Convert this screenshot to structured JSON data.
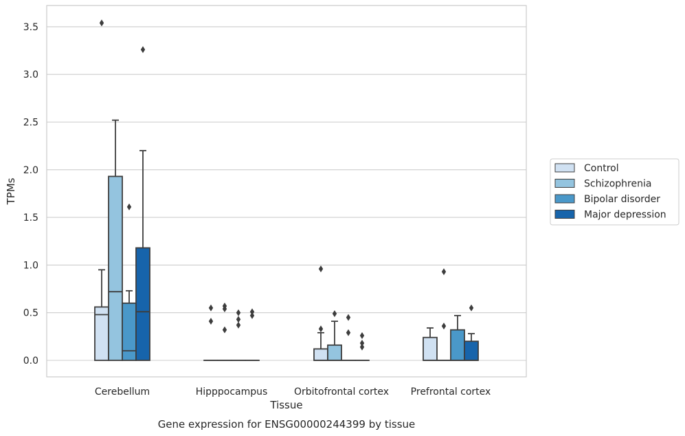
{
  "caption": "Gene expression for ENSG00000244399 by tissue",
  "chart_data": {
    "type": "box",
    "xlabel": "Tissue",
    "ylabel": "TPMs",
    "ylim": [
      -0.17,
      3.72
    ],
    "yticks": [
      0.0,
      0.5,
      1.0,
      1.5,
      2.0,
      2.5,
      3.0,
      3.5
    ],
    "ytick_labels": [
      "0.0",
      "0.5",
      "1.0",
      "1.5",
      "2.0",
      "2.5",
      "3.0",
      "3.5"
    ],
    "grid": "horizontal",
    "legend_position": "right",
    "categories": [
      "Cerebellum",
      "Hipppocampus",
      "Orbitofrontal cortex",
      "Prefrontal cortex"
    ],
    "series": [
      {
        "name": "Control",
        "color": "#d0e1f2",
        "boxes": [
          {
            "whislo": 0.0,
            "q1": 0.0,
            "med": 0.48,
            "q3": 0.56,
            "whishi": 0.95,
            "fliers": [
              3.54
            ]
          },
          {
            "whislo": 0.0,
            "q1": 0.0,
            "med": 0.0,
            "q3": 0.0,
            "whishi": 0.0,
            "fliers": [
              0.41,
              0.55
            ]
          },
          {
            "whislo": 0.0,
            "q1": 0.0,
            "med": 0.0,
            "q3": 0.12,
            "whishi": 0.29,
            "fliers": [
              0.33,
              0.96
            ]
          },
          {
            "whislo": 0.0,
            "q1": 0.0,
            "med": 0.0,
            "q3": 0.24,
            "whishi": 0.34,
            "fliers": []
          }
        ]
      },
      {
        "name": "Schizophrenia",
        "color": "#94c4df",
        "boxes": [
          {
            "whislo": 0.0,
            "q1": 0.0,
            "med": 0.72,
            "q3": 1.93,
            "whishi": 2.52,
            "fliers": []
          },
          {
            "whislo": 0.0,
            "q1": 0.0,
            "med": 0.0,
            "q3": 0.0,
            "whishi": 0.0,
            "fliers": [
              0.32,
              0.54,
              0.57
            ]
          },
          {
            "whislo": 0.0,
            "q1": 0.0,
            "med": 0.0,
            "q3": 0.16,
            "whishi": 0.41,
            "fliers": [
              0.49
            ]
          },
          {
            "whislo": 0.0,
            "q1": 0.0,
            "med": 0.0,
            "q3": 0.0,
            "whishi": 0.0,
            "fliers": [
              0.36,
              0.93
            ]
          }
        ]
      },
      {
        "name": "Bipolar disorder",
        "color": "#4a98c9",
        "boxes": [
          {
            "whislo": 0.0,
            "q1": 0.0,
            "med": 0.1,
            "q3": 0.6,
            "whishi": 0.73,
            "fliers": [
              1.61
            ]
          },
          {
            "whislo": 0.0,
            "q1": 0.0,
            "med": 0.0,
            "q3": 0.0,
            "whishi": 0.0,
            "fliers": [
              0.37,
              0.43,
              0.5
            ]
          },
          {
            "whislo": 0.0,
            "q1": 0.0,
            "med": 0.0,
            "q3": 0.0,
            "whishi": 0.0,
            "fliers": [
              0.29,
              0.45
            ]
          },
          {
            "whislo": 0.0,
            "q1": 0.0,
            "med": 0.0,
            "q3": 0.32,
            "whishi": 0.47,
            "fliers": []
          }
        ]
      },
      {
        "name": "Major depression",
        "color": "#1764ab",
        "boxes": [
          {
            "whislo": 0.0,
            "q1": 0.0,
            "med": 0.51,
            "q3": 1.18,
            "whishi": 2.2,
            "fliers": [
              3.26
            ]
          },
          {
            "whislo": 0.0,
            "q1": 0.0,
            "med": 0.0,
            "q3": 0.0,
            "whishi": 0.0,
            "fliers": [
              0.47,
              0.51
            ]
          },
          {
            "whislo": 0.0,
            "q1": 0.0,
            "med": 0.0,
            "q3": 0.0,
            "whishi": 0.0,
            "fliers": [
              0.14,
              0.18,
              0.26
            ]
          },
          {
            "whislo": 0.0,
            "q1": 0.0,
            "med": 0.0,
            "q3": 0.2,
            "whishi": 0.28,
            "fliers": [
              0.55
            ]
          }
        ]
      }
    ]
  }
}
